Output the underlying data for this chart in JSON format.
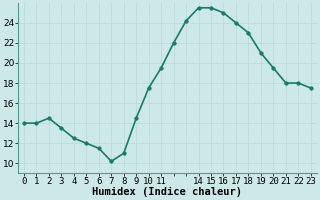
{
  "x": [
    0,
    1,
    2,
    3,
    4,
    5,
    6,
    7,
    8,
    9,
    10,
    11,
    12,
    13,
    14,
    15,
    16,
    17,
    18,
    19,
    20,
    21,
    22,
    23
  ],
  "y": [
    14,
    14,
    14.5,
    13.5,
    12.5,
    12,
    11.5,
    10.2,
    11,
    14.5,
    17.5,
    19.5,
    22,
    24.2,
    25.5,
    25.5,
    25,
    24,
    23,
    21,
    19.5,
    18,
    18,
    17.5
  ],
  "line_color": "#1a7a6a",
  "marker_color": "#1a7a6a",
  "bg_color": "#cce8e8",
  "grid_color": "#b8d8d8",
  "xlabel": "Humidex (Indice chaleur)",
  "ylim": [
    9,
    26
  ],
  "yticks": [
    10,
    12,
    14,
    16,
    18,
    20,
    22,
    24
  ],
  "xtick_labels": [
    "0",
    "1",
    "2",
    "3",
    "4",
    "5",
    "6",
    "7",
    "8",
    "9",
    "10",
    "11",
    "",
    "",
    "14",
    "15",
    "16",
    "17",
    "18",
    "19",
    "20",
    "21",
    "22",
    "23"
  ],
  "xlabel_fontsize": 7.5,
  "tick_fontsize": 6.5,
  "line_width": 1.2,
  "marker_size": 2.5,
  "spine_color": "#5a9a8a"
}
